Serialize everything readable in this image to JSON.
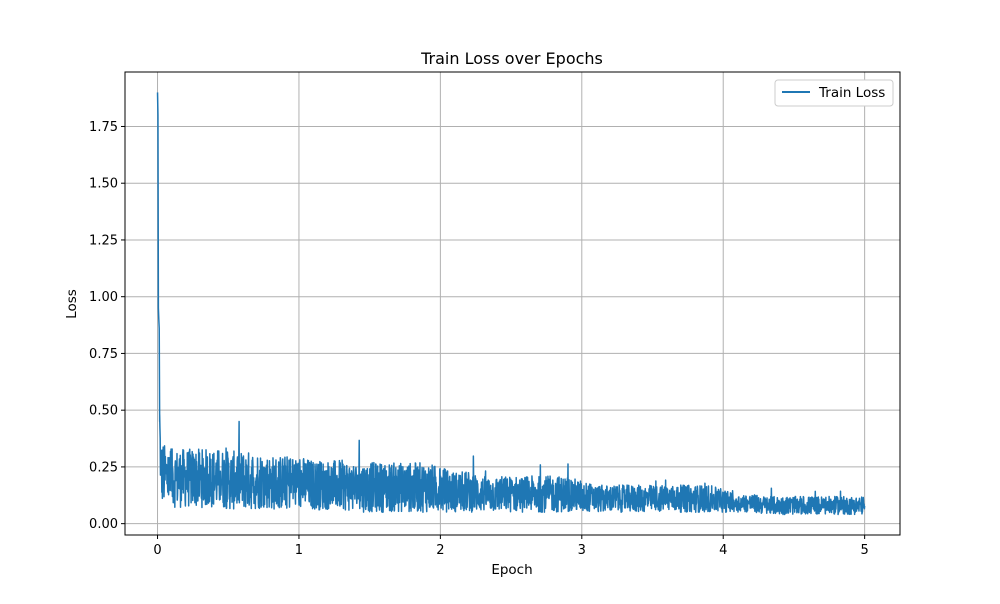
{
  "chart_data": {
    "type": "line",
    "title": "Train Loss over Epochs",
    "xlabel": "Epoch",
    "ylabel": "Loss",
    "xlim": [
      -0.23,
      5.25
    ],
    "ylim": [
      -0.05,
      1.99
    ],
    "xticks": [
      0,
      1,
      2,
      3,
      4,
      5
    ],
    "xtick_labels": [
      "0",
      "1",
      "2",
      "3",
      "4",
      "5"
    ],
    "yticks": [
      0.0,
      0.25,
      0.5,
      0.75,
      1.0,
      1.25,
      1.5,
      1.75
    ],
    "ytick_labels": [
      "0.00",
      "0.25",
      "0.50",
      "0.75",
      "1.00",
      "1.25",
      "1.50",
      "1.75"
    ],
    "grid": true,
    "legend_position": "top-right",
    "series_color": "#1f77b4",
    "series": [
      {
        "name": "Train Loss",
        "x": [
          0.0,
          0.003,
          0.006,
          0.009,
          0.012,
          0.015,
          0.02,
          0.025,
          0.03,
          0.04,
          0.05,
          0.06,
          0.08,
          0.1,
          0.15,
          0.2,
          0.25,
          0.3,
          0.35,
          0.4,
          0.45,
          0.5,
          0.6,
          0.7,
          0.75,
          0.8,
          0.9,
          1.0,
          1.1,
          1.2,
          1.3,
          1.4,
          1.5,
          1.6,
          1.7,
          1.8,
          1.9,
          2.0,
          2.1,
          2.2,
          2.3,
          2.4,
          2.5,
          2.6,
          2.7,
          2.8,
          2.9,
          3.0,
          3.1,
          3.2,
          3.3,
          3.4,
          3.5,
          3.6,
          3.7,
          3.8,
          3.9,
          4.0,
          4.1,
          4.2,
          4.3,
          4.4,
          4.5,
          4.6,
          4.7,
          4.8,
          4.9,
          5.0
        ],
        "y": [
          1.9,
          1.8,
          0.95,
          0.9,
          0.86,
          0.45,
          0.3,
          0.25,
          0.22,
          0.22,
          0.21,
          0.21,
          0.2,
          0.2,
          0.2,
          0.2,
          0.2,
          0.2,
          0.2,
          0.2,
          0.2,
          0.19,
          0.19,
          0.19,
          0.19,
          0.18,
          0.18,
          0.18,
          0.17,
          0.17,
          0.17,
          0.16,
          0.16,
          0.16,
          0.16,
          0.16,
          0.16,
          0.15,
          0.14,
          0.14,
          0.13,
          0.13,
          0.13,
          0.13,
          0.13,
          0.13,
          0.13,
          0.12,
          0.11,
          0.11,
          0.11,
          0.11,
          0.11,
          0.11,
          0.11,
          0.11,
          0.11,
          0.1,
          0.09,
          0.09,
          0.08,
          0.08,
          0.08,
          0.08,
          0.08,
          0.08,
          0.08,
          0.08
        ],
        "band": [
          0.0,
          0.0,
          0.0,
          0.0,
          0.0,
          0.1,
          0.12,
          0.12,
          0.14,
          0.14,
          0.14,
          0.13,
          0.13,
          0.13,
          0.13,
          0.13,
          0.13,
          0.13,
          0.13,
          0.13,
          0.13,
          0.13,
          0.13,
          0.13,
          0.12,
          0.12,
          0.12,
          0.12,
          0.11,
          0.11,
          0.11,
          0.11,
          0.11,
          0.11,
          0.11,
          0.11,
          0.11,
          0.1,
          0.09,
          0.09,
          0.08,
          0.08,
          0.08,
          0.08,
          0.08,
          0.08,
          0.08,
          0.07,
          0.06,
          0.06,
          0.06,
          0.06,
          0.06,
          0.06,
          0.06,
          0.06,
          0.06,
          0.05,
          0.04,
          0.04,
          0.04,
          0.04,
          0.04,
          0.04,
          0.04,
          0.04,
          0.04,
          0.04
        ]
      }
    ]
  }
}
